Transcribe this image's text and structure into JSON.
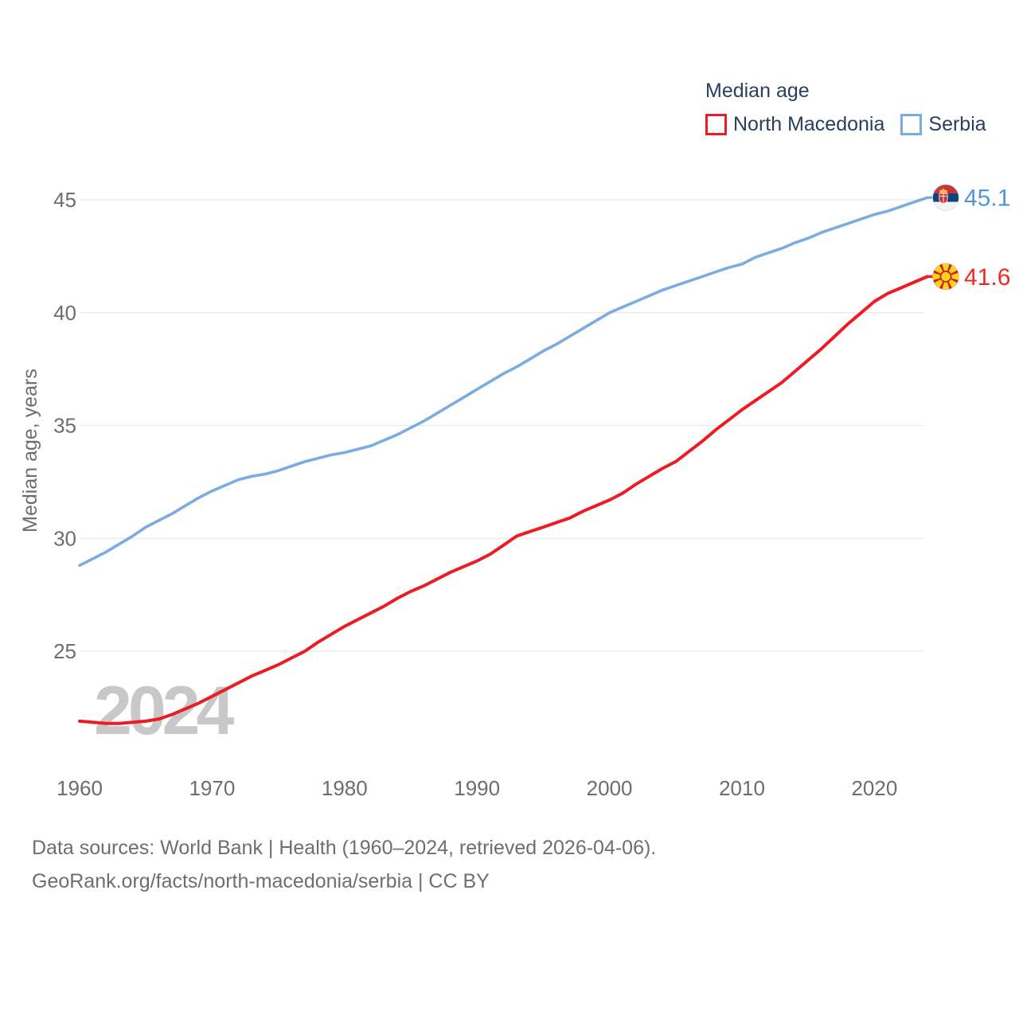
{
  "legend": {
    "title": "Median age",
    "items": [
      {
        "label": "North Macedonia",
        "color": "#ec1c24"
      },
      {
        "label": "Serbia",
        "color": "#79ade1"
      }
    ]
  },
  "watermark": "2024",
  "footer": {
    "line1": "Data sources: World Bank | Health (1960–2024, retrieved 2026-04-06).",
    "line2": "GeoRank.org/facts/north-macedonia/serbia | CC BY"
  },
  "chart_data": {
    "type": "line",
    "title": "Median age",
    "xlabel": "",
    "ylabel": "Median age, years",
    "x_range": [
      1960,
      2024
    ],
    "ylim": [
      21.5,
      46
    ],
    "grid": "horizontal",
    "legend_position": "top-right",
    "xticks": [
      1960,
      1970,
      1980,
      1990,
      2000,
      2010,
      2020
    ],
    "yticks": [
      25,
      30,
      35,
      40,
      45
    ],
    "x": [
      1960,
      1961,
      1962,
      1963,
      1964,
      1965,
      1966,
      1967,
      1968,
      1969,
      1970,
      1971,
      1972,
      1973,
      1974,
      1975,
      1976,
      1977,
      1978,
      1979,
      1980,
      1981,
      1982,
      1983,
      1984,
      1985,
      1986,
      1987,
      1988,
      1989,
      1990,
      1991,
      1992,
      1993,
      1994,
      1995,
      1996,
      1997,
      1998,
      1999,
      2000,
      2001,
      2002,
      2003,
      2004,
      2005,
      2006,
      2007,
      2008,
      2009,
      2010,
      2011,
      2012,
      2013,
      2014,
      2015,
      2016,
      2017,
      2018,
      2019,
      2020,
      2021,
      2022,
      2023,
      2024
    ],
    "series": [
      {
        "name": "North Macedonia",
        "color": "#ec1c24",
        "label_color": "#ee2a22",
        "end_label": "41.6",
        "flag_icon": "north-macedonia-flag",
        "values": [
          21.9,
          21.85,
          21.8,
          21.8,
          21.85,
          21.9,
          22.0,
          22.2,
          22.45,
          22.7,
          23.0,
          23.3,
          23.6,
          23.9,
          24.15,
          24.4,
          24.7,
          25.0,
          25.4,
          25.75,
          26.1,
          26.4,
          26.7,
          27.0,
          27.35,
          27.65,
          27.9,
          28.2,
          28.5,
          28.75,
          29.0,
          29.3,
          29.7,
          30.1,
          30.3,
          30.5,
          30.7,
          30.9,
          31.2,
          31.45,
          31.7,
          32.0,
          32.4,
          32.75,
          33.1,
          33.4,
          33.85,
          34.3,
          34.8,
          35.25,
          35.7,
          36.1,
          36.5,
          36.9,
          37.4,
          37.9,
          38.4,
          38.95,
          39.5,
          40.0,
          40.5,
          40.85,
          41.1,
          41.35,
          41.6
        ]
      },
      {
        "name": "Serbia",
        "color": "#79ade1",
        "label_color": "#4f96dc",
        "end_label": "45.1",
        "flag_icon": "serbia-flag",
        "values": [
          28.8,
          29.1,
          29.4,
          29.75,
          30.1,
          30.5,
          30.8,
          31.1,
          31.45,
          31.8,
          32.1,
          32.35,
          32.6,
          32.75,
          32.85,
          33.0,
          33.2,
          33.4,
          33.55,
          33.7,
          33.8,
          33.95,
          34.1,
          34.35,
          34.6,
          34.9,
          35.2,
          35.55,
          35.9,
          36.25,
          36.6,
          36.95,
          37.3,
          37.6,
          37.95,
          38.3,
          38.6,
          38.95,
          39.3,
          39.65,
          40.0,
          40.25,
          40.5,
          40.75,
          41.0,
          41.2,
          41.4,
          41.6,
          41.8,
          42.0,
          42.15,
          42.45,
          42.65,
          42.85,
          43.1,
          43.3,
          43.55,
          43.75,
          43.95,
          44.15,
          44.35,
          44.5,
          44.7,
          44.9,
          45.1
        ]
      }
    ]
  }
}
